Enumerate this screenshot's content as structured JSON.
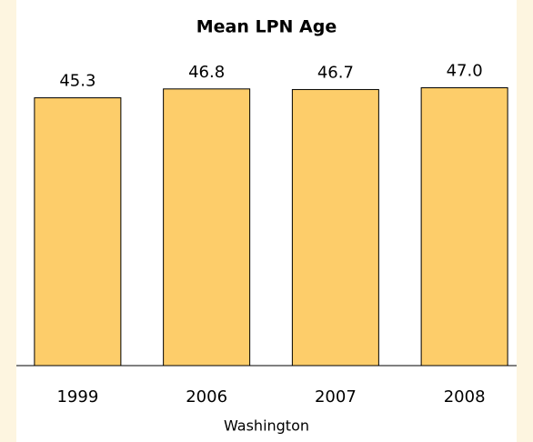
{
  "chart_data": {
    "type": "bar",
    "title": "Mean LPN Age",
    "x_label": "Washington",
    "categories": [
      "1999",
      "2006",
      "2007",
      "2008"
    ],
    "values": [
      45.3,
      46.8,
      46.7,
      47.0
    ],
    "value_labels": [
      "45.3",
      "46.8",
      "46.7",
      "47.0"
    ],
    "color": "#fdcd6a",
    "ylim": [
      0,
      48
    ]
  }
}
